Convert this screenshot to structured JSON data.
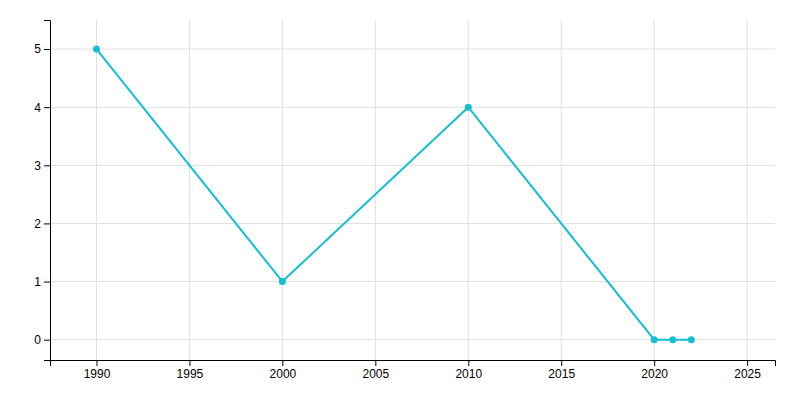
{
  "chart_data": {
    "type": "line",
    "x": [
      1990,
      2000,
      2010,
      2020,
      2021,
      2022
    ],
    "values": [
      5,
      1,
      4,
      0,
      0,
      0
    ],
    "color": "#17becf",
    "marker": "circle",
    "xlim": [
      1987.5,
      2026.5
    ],
    "ylim": [
      -0.35,
      5.5
    ],
    "xticks": [
      1990,
      1995,
      2000,
      2005,
      2010,
      2015,
      2020,
      2025
    ],
    "yticks": [
      0,
      1,
      2,
      3,
      4,
      5
    ],
    "grid": true
  }
}
